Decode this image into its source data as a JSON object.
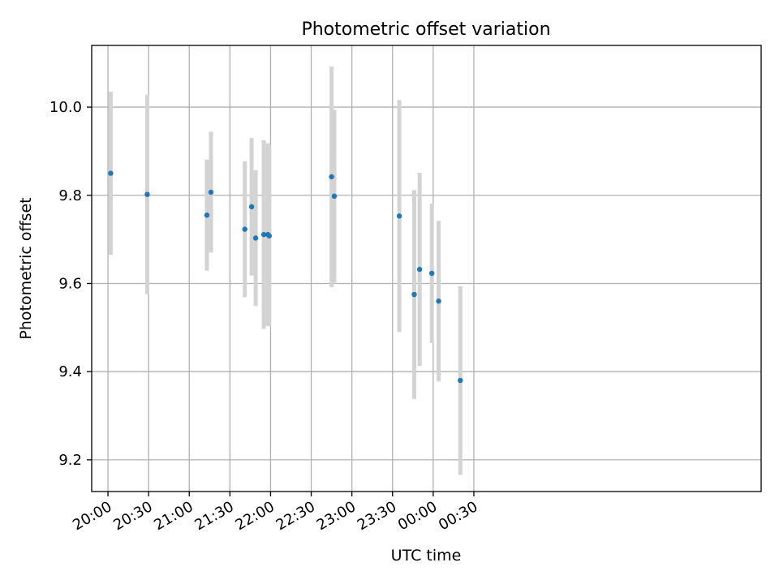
{
  "chart_data": {
    "type": "scatter",
    "title": "Photometric offset variation",
    "xlabel": "UTC time",
    "ylabel": "Photometric offset",
    "xlim_minutes": [
      1188,
      1682
    ],
    "ylim": [
      9.128,
      10.14
    ],
    "grid": true,
    "x_ticks": [
      {
        "label": "20:00",
        "minute": 1200
      },
      {
        "label": "20:30",
        "minute": 1230
      },
      {
        "label": "21:00",
        "minute": 1260
      },
      {
        "label": "21:30",
        "minute": 1290
      },
      {
        "label": "22:00",
        "minute": 1320
      },
      {
        "label": "22:30",
        "minute": 1350
      },
      {
        "label": "23:00",
        "minute": 1380
      },
      {
        "label": "23:30",
        "minute": 1410
      },
      {
        "label": "00:00",
        "minute": 1440
      },
      {
        "label": "00:30",
        "minute": 1470
      }
    ],
    "y_ticks": [
      {
        "label": "9.2",
        "value": 9.2
      },
      {
        "label": "9.4",
        "value": 9.4
      },
      {
        "label": "9.6",
        "value": 9.6
      },
      {
        "label": "9.8",
        "value": 9.8
      },
      {
        "label": "10.0",
        "value": 10.0
      }
    ],
    "colors": {
      "point": "#1f77b4",
      "errorbar": "#d3d3d3",
      "grid": "#b0b0b0"
    },
    "points": [
      {
        "time": "20:02",
        "minute": 1202,
        "y": 9.85,
        "yerr": 0.185
      },
      {
        "time": "20:29",
        "minute": 1229,
        "y": 9.802,
        "yerr": 0.226
      },
      {
        "time": "21:13",
        "minute": 1273,
        "y": 9.755,
        "yerr": 0.126
      },
      {
        "time": "21:16",
        "minute": 1276,
        "y": 9.807,
        "yerr": 0.137
      },
      {
        "time": "21:41",
        "minute": 1301,
        "y": 9.723,
        "yerr": 0.154
      },
      {
        "time": "21:46",
        "minute": 1306,
        "y": 9.774,
        "yerr": 0.156
      },
      {
        "time": "21:49",
        "minute": 1309,
        "y": 9.703,
        "yerr": 0.154
      },
      {
        "time": "21:55",
        "minute": 1315,
        "y": 9.711,
        "yerr": 0.214
      },
      {
        "time": "21:58",
        "minute": 1318,
        "y": 9.711,
        "yerr": 0.207
      },
      {
        "time": "21:59",
        "minute": 1319,
        "y": 9.708,
        "yerr": 0.205
      },
      {
        "time": "22:45",
        "minute": 1365,
        "y": 9.842,
        "yerr": 0.25
      },
      {
        "time": "22:47",
        "minute": 1367,
        "y": 9.798,
        "yerr": 0.196
      },
      {
        "time": "23:35",
        "minute": 1415,
        "y": 9.753,
        "yerr": 0.263
      },
      {
        "time": "23:46",
        "minute": 1426,
        "y": 9.575,
        "yerr": 0.237
      },
      {
        "time": "23:50",
        "minute": 1430,
        "y": 9.632,
        "yerr": 0.219
      },
      {
        "time": "23:59",
        "minute": 1439,
        "y": 9.623,
        "yerr": 0.158
      },
      {
        "time": "00:04",
        "minute": 1444,
        "y": 9.56,
        "yerr": 0.182
      },
      {
        "time": "00:20",
        "minute": 1460,
        "y": 9.38,
        "yerr": 0.214
      }
    ]
  }
}
